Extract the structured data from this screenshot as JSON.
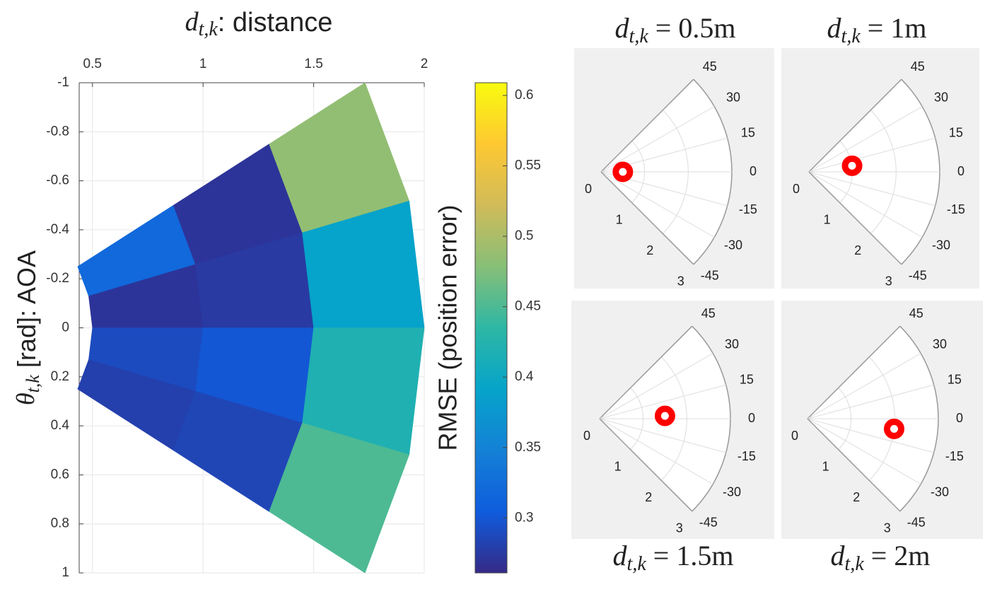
{
  "chart_data": [
    {
      "type": "sector_heatmap",
      "title": {
        "var": "d",
        "sub": "t,k",
        "rest": ": distance"
      },
      "y_label": {
        "var": "θ",
        "sub": "t,k",
        "rest": " [rad]: AOA"
      },
      "colorbar_label": "RMSE (position error)",
      "d_edges": [
        0.5,
        1,
        1.5,
        2
      ],
      "theta_edges": [
        -0.5236,
        -0.2618,
        0,
        0.2618,
        0.5236
      ],
      "values": [
        [
          0.32,
          0.27,
          0.485
        ],
        [
          0.27,
          0.275,
          0.39
        ],
        [
          0.29,
          0.3,
          0.42
        ],
        [
          0.28,
          0.285,
          0.45
        ]
      ],
      "xlim": [
        0.44,
        2
      ],
      "xticks": [
        0.5,
        1,
        1.5,
        2
      ],
      "ylim": [
        -1,
        1
      ],
      "y_reversed": true,
      "yticks": [
        -1,
        -0.8,
        -0.6,
        -0.4,
        -0.2,
        0,
        0.2,
        0.4,
        0.6,
        0.8,
        1
      ],
      "clim": [
        0.261,
        0.609
      ],
      "cticks": [
        0.3,
        0.35,
        0.4,
        0.45,
        0.5,
        0.55,
        0.6
      ],
      "colormap": [
        "#352a87",
        "#0f5cdd",
        "#1481d6",
        "#06a4ca",
        "#2eb7a4",
        "#87bf77",
        "#d1bb59",
        "#fec832",
        "#f9fb0e"
      ],
      "grid": true
    },
    {
      "type": "polar",
      "title": {
        "var": "d",
        "sub": "t,k",
        "rest": " = 0.5m"
      },
      "thetalim": [
        -45,
        45
      ],
      "thetaticks": [
        45,
        30,
        15,
        0,
        -15,
        -30,
        -45
      ],
      "rlim": [
        0,
        3
      ],
      "rticks": [
        0,
        1,
        2,
        3
      ],
      "marker": {
        "r": 0.5,
        "theta": 0
      },
      "color": "#ff0000"
    },
    {
      "type": "polar",
      "title": {
        "var": "d",
        "sub": "t,k",
        "rest": " = 1m"
      },
      "thetalim": [
        -45,
        45
      ],
      "thetaticks": [
        45,
        30,
        15,
        0,
        -15,
        -30,
        -45
      ],
      "rlim": [
        0,
        3
      ],
      "rticks": [
        0,
        1,
        2,
        3
      ],
      "marker": {
        "r": 1,
        "theta": 8
      },
      "color": "#ff0000"
    },
    {
      "type": "polar",
      "title": {
        "var": "d",
        "sub": "t,k",
        "rest": " = 1.5m"
      },
      "thetalim": [
        -45,
        45
      ],
      "thetaticks": [
        45,
        30,
        15,
        0,
        -15,
        -30,
        -45
      ],
      "rlim": [
        0,
        3
      ],
      "rticks": [
        0,
        1,
        2,
        3
      ],
      "marker": {
        "r": 1.5,
        "theta": 2.5
      },
      "color": "#ff0000"
    },
    {
      "type": "polar",
      "title": {
        "var": "d",
        "sub": "t,k",
        "rest": " = 2m"
      },
      "thetalim": [
        -45,
        45
      ],
      "thetaticks": [
        45,
        30,
        15,
        0,
        -15,
        -30,
        -45
      ],
      "rlim": [
        0,
        3
      ],
      "rticks": [
        0,
        1,
        2,
        3
      ],
      "marker": {
        "r": 2,
        "theta": -6.7
      },
      "color": "#ff0000"
    }
  ]
}
